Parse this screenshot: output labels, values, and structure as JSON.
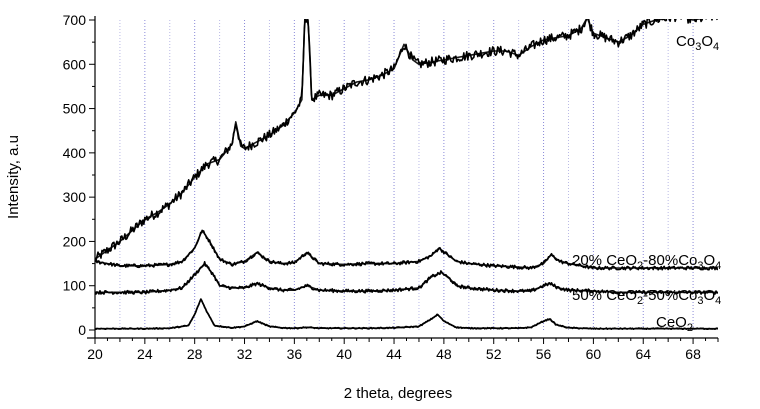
{
  "chart_data": {
    "type": "line",
    "xlabel": "2 theta, degrees",
    "ylabel": "Intensity, a.u",
    "xlim": [
      20,
      70
    ],
    "ylim": [
      0,
      700
    ],
    "x_ticks": [
      "20",
      "24",
      "28",
      "32",
      "36",
      "40",
      "44",
      "48",
      "52",
      "56",
      "60",
      "64",
      "68"
    ],
    "y_ticks": [
      "0",
      "100",
      "200",
      "300",
      "400",
      "500",
      "600",
      "700"
    ],
    "grid": "vertical dotted lines every 2 degrees",
    "series": [
      {
        "name": "Co3O4",
        "label_parts": [
          [
            "Co",
            ""
          ],
          [
            "3",
            "sub"
          ],
          [
            "O",
            ""
          ],
          [
            "4",
            "sub"
          ]
        ],
        "color": "#000000",
        "points": [
          [
            20,
            160
          ],
          [
            21,
            180
          ],
          [
            22,
            200
          ],
          [
            23,
            225
          ],
          [
            24,
            250
          ],
          [
            25,
            265
          ],
          [
            26,
            285
          ],
          [
            27,
            310
          ],
          [
            28,
            345
          ],
          [
            29,
            375
          ],
          [
            30,
            385
          ],
          [
            31,
            420
          ],
          [
            31.3,
            470
          ],
          [
            31.7,
            415
          ],
          [
            32,
            410
          ],
          [
            33,
            425
          ],
          [
            34,
            440
          ],
          [
            35,
            460
          ],
          [
            36,
            490
          ],
          [
            36.6,
            520
          ],
          [
            36.85,
            710
          ],
          [
            37.1,
            700
          ],
          [
            37.4,
            520
          ],
          [
            38,
            530
          ],
          [
            39,
            530
          ],
          [
            40,
            545
          ],
          [
            41,
            560
          ],
          [
            42,
            565
          ],
          [
            43,
            575
          ],
          [
            44,
            590
          ],
          [
            44.8,
            645
          ],
          [
            45.5,
            610
          ],
          [
            46,
            600
          ],
          [
            47,
            605
          ],
          [
            48,
            610
          ],
          [
            49,
            615
          ],
          [
            50,
            620
          ],
          [
            51,
            625
          ],
          [
            52,
            630
          ],
          [
            53,
            630
          ],
          [
            54,
            620
          ],
          [
            55,
            640
          ],
          [
            56,
            655
          ],
          [
            57,
            660
          ],
          [
            58,
            665
          ],
          [
            59,
            680
          ],
          [
            59.5,
            705
          ],
          [
            60,
            670
          ],
          [
            61,
            660
          ],
          [
            62,
            650
          ],
          [
            63,
            665
          ],
          [
            64,
            690
          ],
          [
            65,
            700
          ],
          [
            66,
            705
          ],
          [
            67,
            710
          ],
          [
            68,
            700
          ],
          [
            69,
            705
          ],
          [
            70,
            710
          ]
        ]
      },
      {
        "name": "20% CeO2-80%Co3O4",
        "label_parts": [
          [
            "20%  CeO",
            ""
          ],
          [
            "2",
            "sub"
          ],
          [
            "-80%Co",
            ""
          ],
          [
            "3",
            "sub"
          ],
          [
            "O",
            ""
          ],
          [
            "4",
            "sub"
          ]
        ],
        "color": "#000000",
        "points": [
          [
            20,
            155
          ],
          [
            22,
            145
          ],
          [
            24,
            145
          ],
          [
            26,
            148
          ],
          [
            27,
            155
          ],
          [
            28,
            185
          ],
          [
            28.6,
            225
          ],
          [
            29.2,
            200
          ],
          [
            30,
            160
          ],
          [
            31,
            148
          ],
          [
            32,
            155
          ],
          [
            33,
            175
          ],
          [
            34,
            155
          ],
          [
            35,
            150
          ],
          [
            36,
            152
          ],
          [
            37,
            175
          ],
          [
            38,
            150
          ],
          [
            40,
            148
          ],
          [
            42,
            150
          ],
          [
            44,
            150
          ],
          [
            46,
            155
          ],
          [
            47,
            168
          ],
          [
            47.6,
            185
          ],
          [
            48.3,
            170
          ],
          [
            49,
            155
          ],
          [
            50,
            150
          ],
          [
            52,
            145
          ],
          [
            54,
            142
          ],
          [
            55,
            140
          ],
          [
            56,
            150
          ],
          [
            56.6,
            170
          ],
          [
            57.3,
            155
          ],
          [
            58,
            150
          ],
          [
            60,
            140
          ],
          [
            62,
            140
          ],
          [
            64,
            140
          ],
          [
            66,
            140
          ],
          [
            68,
            140
          ],
          [
            70,
            140
          ]
        ]
      },
      {
        "name": "50% CeO2-50%Co3O4",
        "label_parts": [
          [
            "50%  CeO",
            ""
          ],
          [
            "2",
            "sub"
          ],
          [
            "-50%Co",
            ""
          ],
          [
            "3",
            "sub"
          ],
          [
            "O",
            ""
          ],
          [
            "4",
            "sub"
          ]
        ],
        "color": "#000000",
        "points": [
          [
            20,
            85
          ],
          [
            22,
            85
          ],
          [
            24,
            85
          ],
          [
            26,
            90
          ],
          [
            27,
            95
          ],
          [
            28,
            125
          ],
          [
            28.8,
            150
          ],
          [
            29.5,
            125
          ],
          [
            30,
            100
          ],
          [
            31,
            95
          ],
          [
            32,
            95
          ],
          [
            33,
            105
          ],
          [
            34,
            95
          ],
          [
            35,
            90
          ],
          [
            36,
            90
          ],
          [
            37,
            100
          ],
          [
            38,
            90
          ],
          [
            40,
            88
          ],
          [
            42,
            88
          ],
          [
            44,
            90
          ],
          [
            46,
            95
          ],
          [
            47,
            120
          ],
          [
            47.8,
            130
          ],
          [
            48.5,
            115
          ],
          [
            49,
            100
          ],
          [
            50,
            95
          ],
          [
            52,
            90
          ],
          [
            54,
            88
          ],
          [
            55,
            88
          ],
          [
            56,
            100
          ],
          [
            56.5,
            105
          ],
          [
            57.2,
            95
          ],
          [
            58,
            90
          ],
          [
            60,
            88
          ],
          [
            62,
            85
          ],
          [
            64,
            85
          ],
          [
            66,
            85
          ],
          [
            68,
            85
          ],
          [
            70,
            85
          ]
        ]
      },
      {
        "name": "CeO2",
        "label_parts": [
          [
            "CeO",
            ""
          ],
          [
            "2",
            "sub"
          ]
        ],
        "color": "#000000",
        "points": [
          [
            20,
            3
          ],
          [
            22,
            3
          ],
          [
            24,
            3
          ],
          [
            26,
            4
          ],
          [
            27.5,
            10
          ],
          [
            28,
            35
          ],
          [
            28.5,
            70
          ],
          [
            29,
            40
          ],
          [
            29.6,
            10
          ],
          [
            31,
            5
          ],
          [
            32,
            8
          ],
          [
            33,
            20
          ],
          [
            34,
            8
          ],
          [
            35,
            5
          ],
          [
            36,
            4
          ],
          [
            37,
            6
          ],
          [
            38,
            4
          ],
          [
            40,
            4
          ],
          [
            42,
            4
          ],
          [
            44,
            5
          ],
          [
            46,
            8
          ],
          [
            47,
            25
          ],
          [
            47.5,
            35
          ],
          [
            48,
            20
          ],
          [
            49,
            6
          ],
          [
            50,
            4
          ],
          [
            52,
            4
          ],
          [
            54,
            4
          ],
          [
            55,
            6
          ],
          [
            56,
            20
          ],
          [
            56.5,
            25
          ],
          [
            57,
            12
          ],
          [
            58,
            5
          ],
          [
            60,
            3
          ],
          [
            62,
            3
          ],
          [
            64,
            3
          ],
          [
            66,
            3
          ],
          [
            68,
            3
          ],
          [
            70,
            3
          ]
        ]
      }
    ]
  }
}
